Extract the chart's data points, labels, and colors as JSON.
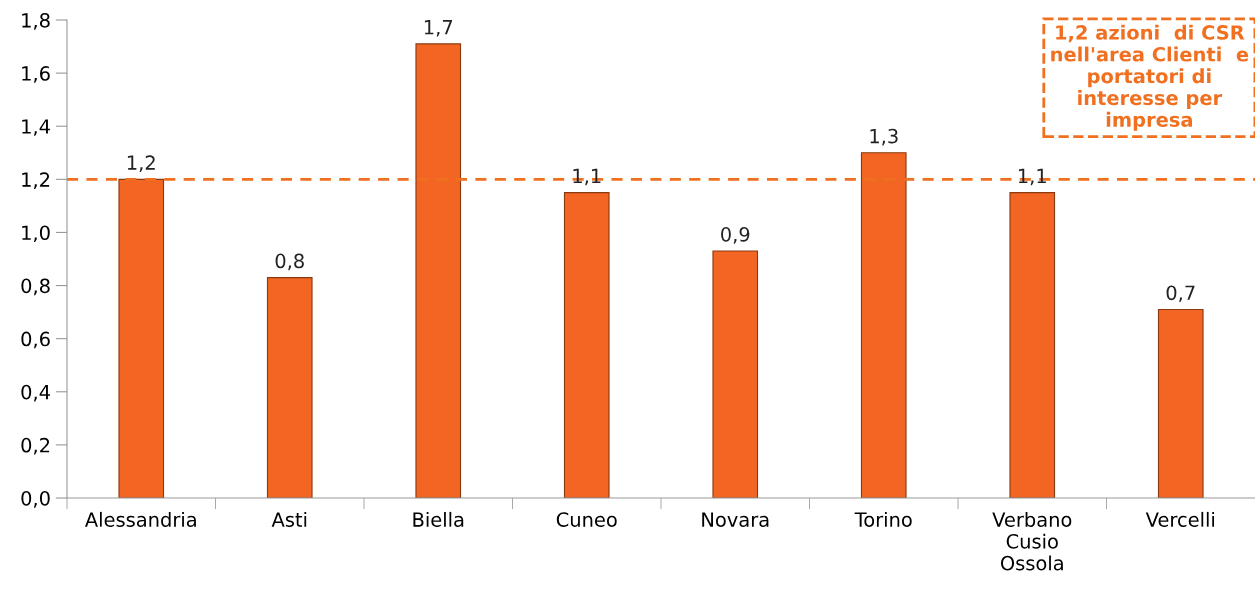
{
  "chart_data": {
    "type": "bar",
    "categories": [
      "Alessandria",
      "Asti",
      "Biella",
      "Cuneo",
      "Novara",
      "Torino",
      "Verbano\nCusio\nOssola",
      "Vercelli"
    ],
    "values": [
      1.2,
      0.83,
      1.71,
      1.15,
      0.93,
      1.3,
      1.15,
      0.71
    ],
    "value_labels": [
      "1,2",
      "0,8",
      "1,7",
      "1,1",
      "0,9",
      "1,3",
      "1,1",
      "0,7"
    ],
    "color": "#f26522",
    "ylim": [
      0,
      1.8
    ],
    "yticks": [
      {
        "value": 0,
        "label": "0,0"
      },
      {
        "value": 0.2,
        "label": "0,2"
      },
      {
        "value": 0.4,
        "label": "0,4"
      },
      {
        "value": 0.6,
        "label": "0,6"
      },
      {
        "value": 0.8,
        "label": "0,8"
      },
      {
        "value": 1.0,
        "label": "1,0"
      },
      {
        "value": 1.2,
        "label": "1,2"
      },
      {
        "value": 1.4,
        "label": "1,4"
      },
      {
        "value": 1.6,
        "label": "1,6"
      },
      {
        "value": 1.8,
        "label": "1,8"
      }
    ],
    "ref_lines": [
      {
        "axis": "y",
        "value": 1.2,
        "label": "1,2 azioni  di CSR\nnell'area Clienti  e\nportatori di\ninteresse per\nimpresa",
        "color": "#f07020",
        "line_style": "dashed"
      }
    ],
    "grid": false,
    "legend": false
  }
}
